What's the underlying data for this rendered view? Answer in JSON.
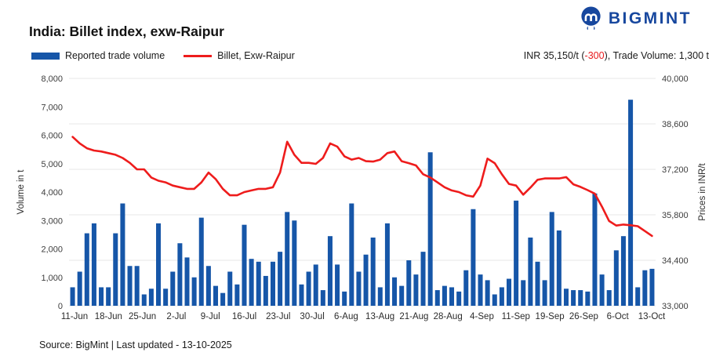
{
  "header": {
    "title": "India: Billet index, exw-Raipur",
    "logo_text": "BIGMINT",
    "logo_color": "#17479E",
    "price_summary": {
      "prefix": "INR 35,150/t (",
      "change": "-300",
      "change_color": "#E8191C",
      "suffix": "), Trade Volume: 1,300 t"
    }
  },
  "legend": [
    {
      "label": "Reported trade volume",
      "color": "#1656A8",
      "type": "bar"
    },
    {
      "label": "Billet, Exw-Raipur",
      "color": "#EE1C1C",
      "type": "line"
    }
  ],
  "footer": {
    "source": "Source: BigMint | Last updated - 13-10-2025"
  },
  "chart_data": {
    "type": "combo-bar-line",
    "grid": "horizontal",
    "gridline_color": "#E7E7E7",
    "tick_text_color": "#3C3C3C",
    "x_tick_labels": [
      "11-Jun",
      "18-Jun",
      "25-Jun",
      "2-Jul",
      "9-Jul",
      "16-Jul",
      "23-Jul",
      "30-Jul",
      "6-Aug",
      "13-Aug",
      "21-Aug",
      "28-Aug",
      "4-Sep",
      "11-Sep",
      "19-Sep",
      "26-Sep",
      "6-Oct",
      "13-Oct"
    ],
    "left_axis": {
      "title": "Volume in t",
      "min": 0,
      "max": 8000,
      "ticks": [
        "0",
        "1,000",
        "2,000",
        "3,000",
        "4,000",
        "5,000",
        "6,000",
        "7,000",
        "8,000"
      ]
    },
    "right_axis": {
      "title": "Prices in INR/t",
      "min": 33000,
      "max": 40000,
      "ticks": [
        "33,000",
        "34,400",
        "35,800",
        "37,200",
        "38,600",
        "40,000"
      ]
    },
    "series": [
      {
        "name": "Reported trade volume",
        "axis": "left",
        "type": "bar",
        "color": "#1656A8",
        "values": [
          650,
          1200,
          2550,
          2900,
          650,
          650,
          2550,
          3600,
          1400,
          1400,
          400,
          600,
          2900,
          600,
          1200,
          2200,
          1700,
          1000,
          3100,
          1400,
          700,
          450,
          1200,
          750,
          2850,
          1650,
          1550,
          1050,
          1550,
          1900,
          3300,
          3000,
          750,
          1200,
          1450,
          550,
          2450,
          1450,
          500,
          3600,
          1200,
          1800,
          2400,
          650,
          2900,
          1000,
          700,
          1600,
          1100,
          1900,
          5400,
          550,
          700,
          650,
          500,
          1250,
          3400,
          1100,
          900,
          400,
          650,
          950,
          3700,
          900,
          2400,
          1550,
          900,
          3300,
          2650,
          600,
          550,
          550,
          500,
          3950,
          1100,
          550,
          1950,
          2450,
          7250,
          650,
          1250,
          1300
        ]
      },
      {
        "name": "Billet, Exw-Raipur",
        "axis": "right",
        "type": "line",
        "color": "#EE1C1C",
        "values": [
          38200,
          38000,
          37850,
          37780,
          37750,
          37700,
          37650,
          37550,
          37400,
          37200,
          37200,
          36950,
          36850,
          36800,
          36700,
          36650,
          36600,
          36600,
          36800,
          37100,
          36900,
          36600,
          36400,
          36400,
          36500,
          36550,
          36600,
          36600,
          36650,
          37100,
          38050,
          37650,
          37400,
          37400,
          37370,
          37550,
          38000,
          37900,
          37600,
          37500,
          37550,
          37450,
          37440,
          37500,
          37700,
          37750,
          37450,
          37390,
          37320,
          37050,
          36950,
          36800,
          36650,
          36550,
          36500,
          36400,
          36360,
          36700,
          37530,
          37390,
          37050,
          36750,
          36700,
          36420,
          36640,
          36880,
          36920,
          36920,
          36920,
          36960,
          36740,
          36660,
          36560,
          36450,
          36050,
          35610,
          35470,
          35500,
          35480,
          35450,
          35300,
          35150
        ]
      }
    ]
  }
}
